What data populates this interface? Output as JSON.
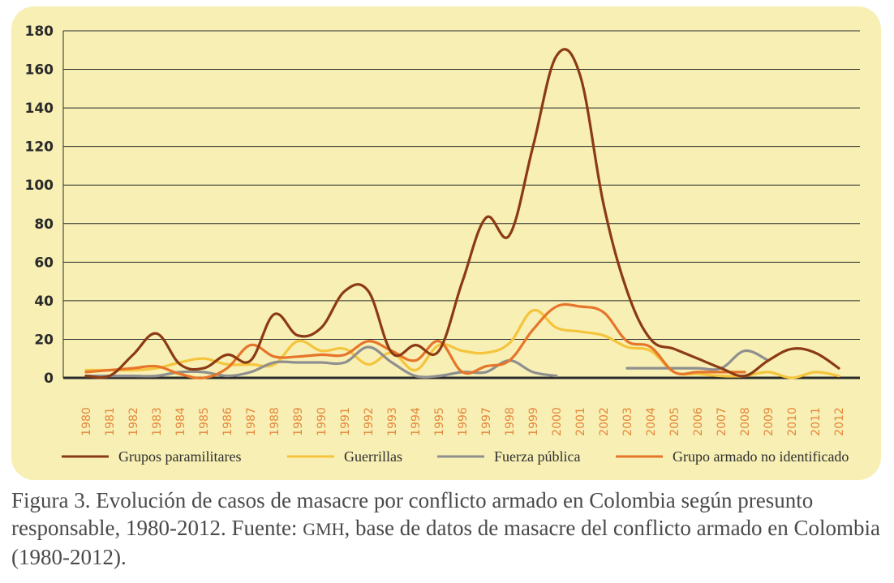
{
  "chart_data": {
    "type": "line",
    "x": [
      "1980",
      "1981",
      "1982",
      "1983",
      "1984",
      "1985",
      "1986",
      "1987",
      "1988",
      "1989",
      "1990",
      "1991",
      "1992",
      "1993",
      "1994",
      "1995",
      "1996",
      "1997",
      "1998",
      "1999",
      "2000",
      "2001",
      "2002",
      "2003",
      "2004",
      "2005",
      "2006",
      "2007",
      "2008",
      "2009",
      "2010",
      "2011",
      "2012"
    ],
    "ylim": [
      0,
      180
    ],
    "yticks": [
      0,
      20,
      40,
      60,
      80,
      100,
      120,
      140,
      160,
      180
    ],
    "grid": true,
    "legend_position": "bottom",
    "series": [
      {
        "name": "Grupos paramilitares",
        "color": "#8b3a14",
        "values": [
          1,
          1,
          12,
          23,
          7,
          5,
          12,
          9,
          33,
          22,
          26,
          45,
          45,
          13,
          17,
          14,
          50,
          83,
          74,
          120,
          167,
          157,
          90,
          45,
          20,
          15,
          10,
          5,
          1,
          9,
          15,
          13,
          5
        ]
      },
      {
        "name": "Guerrillas",
        "color": "#f5c43c",
        "values": [
          4,
          4,
          4,
          5,
          8,
          10,
          7,
          7,
          7,
          19,
          14,
          15,
          7,
          13,
          4,
          17,
          14,
          13,
          18,
          35,
          26,
          24,
          22,
          16,
          14,
          3,
          2,
          1,
          1,
          3,
          0,
          3,
          1
        ]
      },
      {
        "name": "Fuerza pública",
        "color": "#8f8f8f",
        "values": [
          1,
          1,
          1,
          1,
          3,
          3,
          1,
          3,
          8,
          8,
          8,
          8,
          16,
          8,
          1,
          1,
          3,
          3,
          9,
          3,
          1,
          null,
          null,
          5,
          5,
          5,
          5,
          5,
          14,
          9,
          null,
          null,
          null
        ]
      },
      {
        "name": "Grupo armado no identificado",
        "color": "#e6752a",
        "values": [
          3,
          4,
          5,
          6,
          2,
          0,
          5,
          17,
          11,
          11,
          12,
          12,
          19,
          14,
          9,
          19,
          3,
          6,
          9,
          25,
          37,
          37,
          34,
          19,
          16,
          3,
          3,
          3,
          3,
          null,
          null,
          null,
          null
        ]
      }
    ]
  },
  "caption": {
    "prefix": "Figura 3. Evolución de casos de masacre por conflicto armado en Colombia según presunto responsable, 1980-2012. Fuente: ",
    "source_abbr": "GMH",
    "suffix": ", base de datos de masacre del conflicto armado en Colombia (1980-2012)."
  }
}
